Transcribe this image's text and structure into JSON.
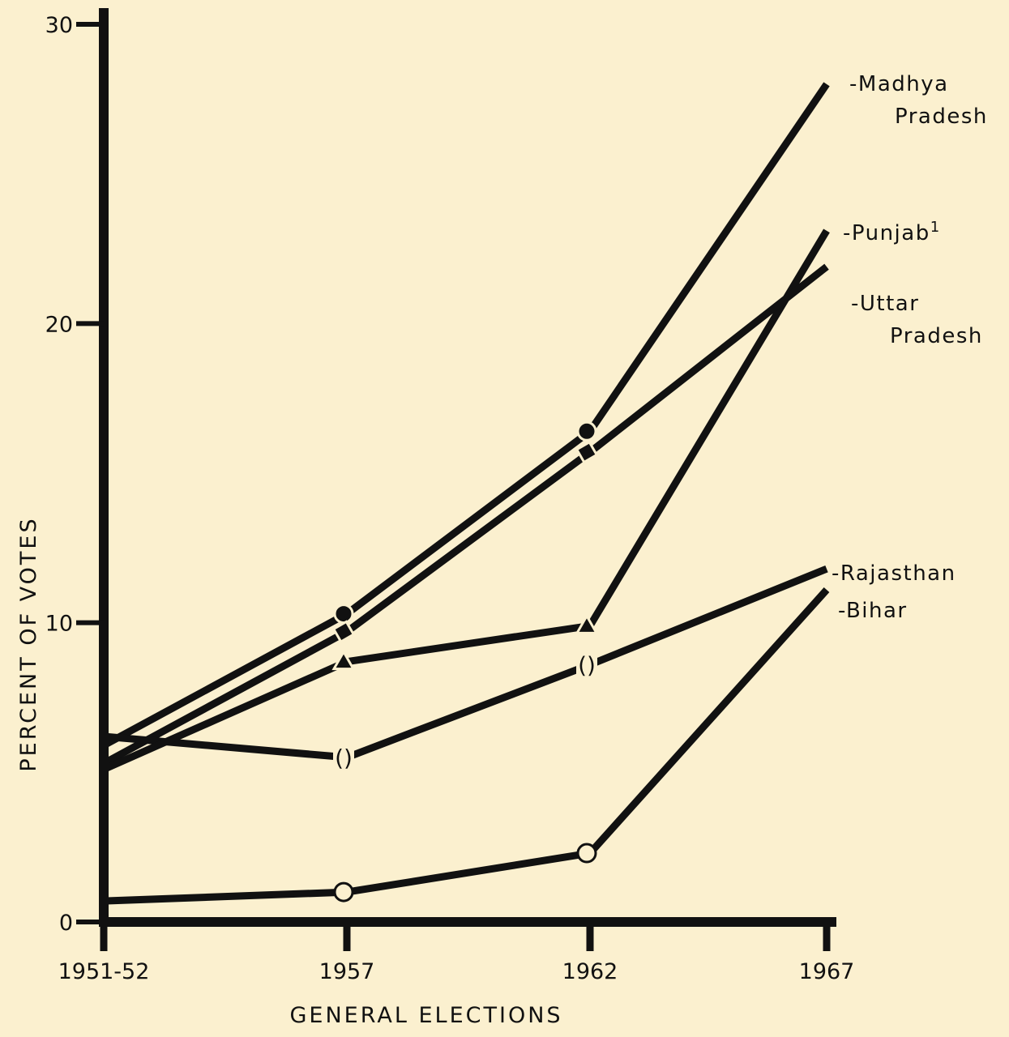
{
  "chart_data": {
    "type": "line",
    "xlabel": "GENERAL ELECTIONS",
    "ylabel": "PERCENT OF VOTES",
    "categories": [
      "1951-52",
      "1957",
      "1962",
      "1967"
    ],
    "yticks": [
      "0",
      "10",
      "20",
      "30"
    ],
    "ylim": [
      0,
      30
    ],
    "grid": false,
    "colors": {
      "background": "#fbf0cf",
      "ink": "#111111"
    },
    "series": [
      {
        "name": "Madhya Pradesh",
        "label_lines": [
          "Madhya",
          "Pradesh"
        ],
        "label_prefix": "-",
        "marker": "circle-filled",
        "values": [
          5.9,
          10.3,
          16.4,
          28.0
        ]
      },
      {
        "name": "Punjab",
        "label_lines": [
          "Punjab"
        ],
        "label_suffix": "1",
        "label_prefix": "-",
        "marker": "triangle",
        "values": [
          null,
          8.7,
          9.9,
          23.1
        ]
      },
      {
        "name": "Uttar Pradesh",
        "label_lines": [
          "Uttar",
          "Pradesh"
        ],
        "label_prefix": "-",
        "marker": "square-filled",
        "values": [
          5.3,
          9.7,
          15.7,
          21.9
        ]
      },
      {
        "name": "Rajasthan",
        "label_lines": [
          "Rajasthan"
        ],
        "label_prefix": "-",
        "marker": "parens",
        "values": [
          6.2,
          5.5,
          8.6,
          11.8
        ]
      },
      {
        "name": "Bihar",
        "label_lines": [
          "Bihar"
        ],
        "label_prefix": "-",
        "marker": "circle-open",
        "values": [
          0.7,
          1.0,
          2.3,
          11.1
        ]
      },
      {
        "name": "",
        "label_lines": [],
        "marker": "none",
        "values": [
          5.1,
          8.7,
          null,
          null
        ]
      }
    ]
  }
}
